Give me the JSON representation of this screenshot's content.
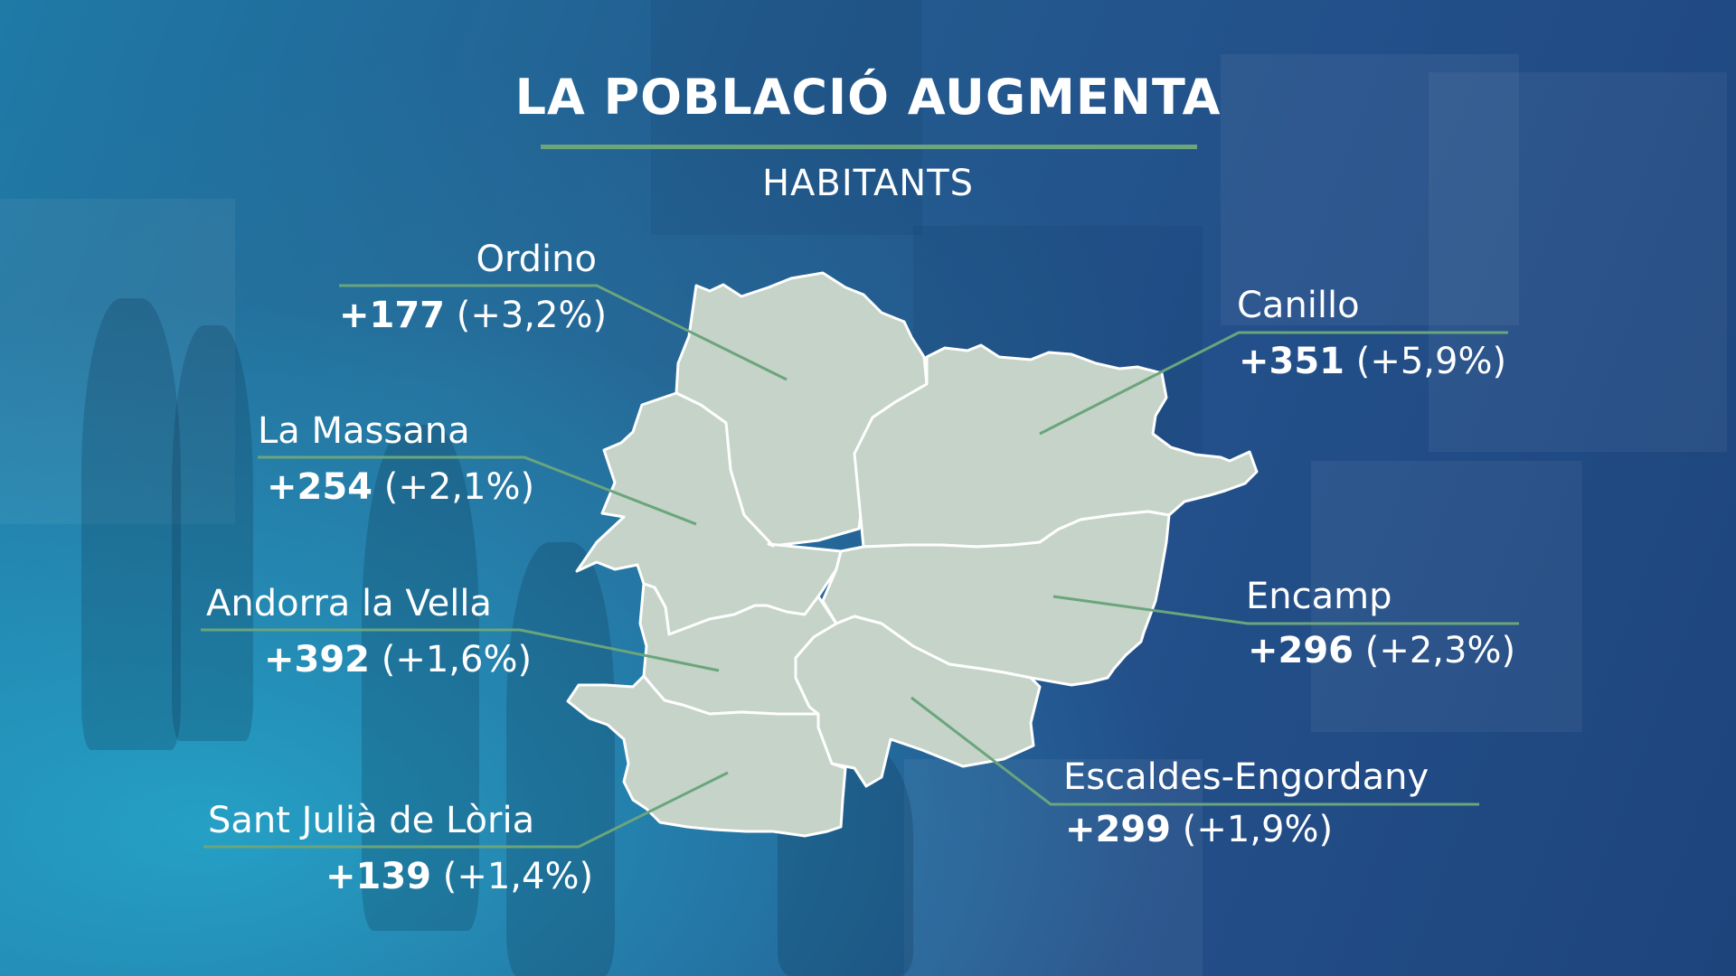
{
  "title": "LA POBLACIÓ AUGMENTA",
  "subtitle": "HABITANTS",
  "colors": {
    "map_fill": "#c5d3c8",
    "accent_line": "#6aa57c",
    "border": "#ffffff"
  },
  "parishes": {
    "ordino": {
      "name": "Ordino",
      "delta": "+177",
      "pct": "(+3,2%)"
    },
    "canillo": {
      "name": "Canillo",
      "delta": "+351",
      "pct": "(+5,9%)"
    },
    "la_massana": {
      "name": "La Massana",
      "delta": "+254",
      "pct": "(+2,1%)"
    },
    "encamp": {
      "name": "Encamp",
      "delta": "+296",
      "pct": "(+2,3%)"
    },
    "andorra_la_vella": {
      "name": "Andorra la Vella",
      "delta": "+392",
      "pct": "(+1,6%)"
    },
    "escaldes_engordany": {
      "name": "Escaldes-Engordany",
      "delta": "+299",
      "pct": "(+1,9%)"
    },
    "sant_julia_de_loria": {
      "name": "Sant Julià de Lòria",
      "delta": "+139",
      "pct": "(+1,4%)"
    }
  }
}
